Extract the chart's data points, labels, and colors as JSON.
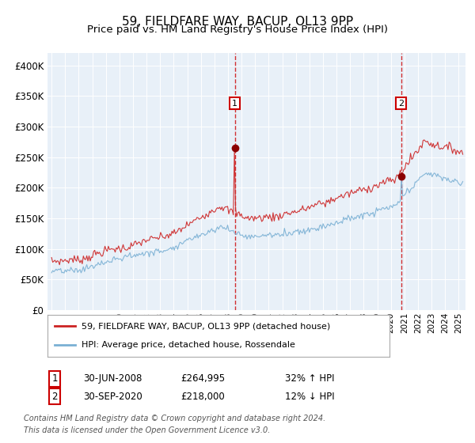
{
  "title": "59, FIELDFARE WAY, BACUP, OL13 9PP",
  "subtitle": "Price paid vs. HM Land Registry's House Price Index (HPI)",
  "background_color": "#e8f0f8",
  "red_line_label": "59, FIELDFARE WAY, BACUP, OL13 9PP (detached house)",
  "blue_line_label": "HPI: Average price, detached house, Rossendale",
  "annotation1": {
    "label": "1",
    "date_str": "30-JUN-2008",
    "price_str": "£264,995",
    "hpi_str": "32% ↑ HPI"
  },
  "annotation2": {
    "label": "2",
    "date_str": "30-SEP-2020",
    "price_str": "£218,000",
    "hpi_str": "12% ↓ HPI"
  },
  "footer": "Contains HM Land Registry data © Crown copyright and database right 2024.\nThis data is licensed under the Open Government Licence v3.0.",
  "ylim": [
    0,
    420000
  ],
  "yticks": [
    0,
    50000,
    100000,
    150000,
    200000,
    250000,
    300000,
    350000,
    400000
  ],
  "ytick_labels": [
    "£0",
    "£50K",
    "£100K",
    "£150K",
    "£200K",
    "£250K",
    "£300K",
    "£350K",
    "£400K"
  ],
  "sale1_x": 2008.5,
  "sale1_y": 264995,
  "sale2_x": 2020.75,
  "sale2_y": 218000,
  "xlim_left": 1994.7,
  "xlim_right": 2025.5
}
